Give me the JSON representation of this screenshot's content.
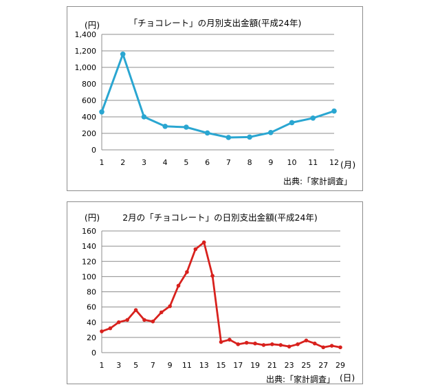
{
  "chart_data": [
    {
      "type": "line",
      "title": "「チョコレート」の月別支出金額(平成24年)",
      "ylabel": "(円)",
      "xlabel": "(月)",
      "source": "出典:「家計調査」",
      "ylim": [
        0,
        1400
      ],
      "yticks": [
        "0",
        "200",
        "400",
        "600",
        "800",
        "1,000",
        "1,200",
        "1,400"
      ],
      "ytick_values": [
        0,
        200,
        400,
        600,
        800,
        1000,
        1200,
        1400
      ],
      "categories": [
        "1",
        "2",
        "3",
        "4",
        "5",
        "6",
        "7",
        "8",
        "9",
        "10",
        "11",
        "12"
      ],
      "values": [
        460,
        1160,
        400,
        285,
        275,
        205,
        150,
        155,
        210,
        330,
        385,
        470
      ],
      "grid": true,
      "color": "#2aa6d1"
    },
    {
      "type": "line",
      "title": "2月の「チョコレート」の日別支出金額(平成24年)",
      "ylabel": "(円)",
      "xlabel": "(日)",
      "source": "出典:「家計調査」",
      "ylim": [
        0,
        160
      ],
      "yticks": [
        "0",
        "20",
        "40",
        "60",
        "80",
        "100",
        "120",
        "140",
        "160"
      ],
      "ytick_values": [
        0,
        20,
        40,
        60,
        80,
        100,
        120,
        140,
        160
      ],
      "x": [
        1,
        2,
        3,
        4,
        5,
        6,
        7,
        8,
        9,
        10,
        11,
        12,
        13,
        14,
        15,
        16,
        17,
        18,
        19,
        20,
        21,
        22,
        23,
        24,
        25,
        26,
        27,
        28,
        29
      ],
      "xtick_labels": [
        "1",
        "3",
        "5",
        "7",
        "9",
        "11",
        "13",
        "15",
        "17",
        "19",
        "21",
        "23",
        "25",
        "27",
        "29"
      ],
      "values": [
        28,
        32,
        40,
        43,
        56,
        43,
        41,
        53,
        61,
        88,
        106,
        136,
        145,
        101,
        14,
        17,
        11,
        13,
        12,
        10,
        11,
        10,
        8,
        11,
        16,
        12,
        7,
        9,
        7
      ],
      "grid": true,
      "color": "#d8211d"
    }
  ]
}
